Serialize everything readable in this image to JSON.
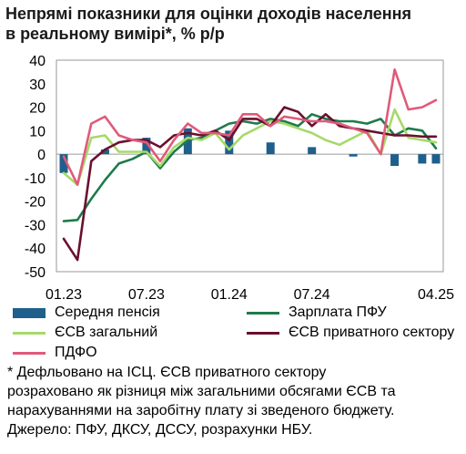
{
  "title_lines": [
    "Непрямі показники для оцінки доходів населення",
    "в реальному вимірі*, % р/р"
  ],
  "colors": {
    "pension": "#1f5f8b",
    "pfu_salary": "#1e7b4b",
    "esv_total": "#a6d96a",
    "esv_private": "#6b0f2e",
    "pdfo": "#e05a7a"
  },
  "legend": {
    "pension": "Середня пенсія",
    "pfu_salary": "Зарплата ПФУ",
    "esv_total": "ЄСВ загальний",
    "esv_private": "ЄСВ приватного сектору",
    "pdfo": "ПДФО"
  },
  "footnote": [
    "* Дефльовано на ІСЦ. ЄСВ приватного сектору",
    "розраховано як різниця між загальними обсягами ЄСВ та",
    "нарахуваннями на заробітну плату зі зведеного бюджету.",
    "Джерело: ПФУ, ДКСУ, ДССУ, розрахунки НБУ."
  ],
  "chart_data": {
    "type": "line",
    "x": [
      "01.23",
      "02.23",
      "03.23",
      "04.23",
      "05.23",
      "06.23",
      "07.23",
      "08.23",
      "09.23",
      "10.23",
      "11.23",
      "12.23",
      "01.24",
      "02.24",
      "03.24",
      "04.24",
      "05.24",
      "06.24",
      "07.24",
      "08.24",
      "09.24",
      "10.24",
      "11.24",
      "12.24",
      "01.25",
      "02.25",
      "03.25",
      "04.25"
    ],
    "x_tick_labels": [
      "01.23",
      "07.23",
      "01.24",
      "07.24",
      "04.25"
    ],
    "ylim": [
      -50,
      40
    ],
    "yticks": [
      -50,
      -40,
      -30,
      -20,
      -10,
      0,
      10,
      20,
      30,
      40
    ],
    "grid": false,
    "legend_position": "bottom",
    "series": [
      {
        "key": "pension",
        "name": "Середня пенсія",
        "kind": "bar",
        "values": [
          -8,
          null,
          null,
          2,
          null,
          null,
          7,
          null,
          null,
          11,
          null,
          null,
          10,
          null,
          null,
          5,
          null,
          null,
          3,
          null,
          null,
          -1,
          null,
          null,
          -5,
          null,
          -4,
          -4
        ]
      },
      {
        "key": "pfu_salary",
        "name": "Зарплата ПФУ",
        "kind": "line",
        "values": [
          -28.5,
          -28,
          -19,
          -11,
          -4,
          -2,
          1,
          -6,
          1,
          6,
          7,
          10,
          13,
          14,
          13,
          15,
          14,
          12,
          17,
          15,
          14,
          14,
          13,
          15,
          8,
          11,
          10,
          2.5
        ]
      },
      {
        "key": "esv_total",
        "name": "ЄСВ загальний",
        "kind": "line",
        "values": [
          -8,
          -13,
          7,
          8,
          1,
          1,
          1,
          -5,
          3,
          7,
          6,
          9,
          2,
          8,
          11,
          14,
          13,
          11,
          9,
          6,
          4,
          7,
          10,
          0,
          19,
          7,
          6,
          5
        ]
      },
      {
        "key": "esv_private",
        "name": "ЄСВ приватного сектору",
        "kind": "line",
        "values": [
          -36,
          -45,
          -3,
          2,
          5,
          6,
          6,
          3,
          8,
          9,
          8,
          10,
          6,
          15,
          15,
          12,
          20,
          18,
          12,
          17,
          12,
          11,
          10,
          9,
          8,
          8,
          7.5,
          7.5
        ]
      },
      {
        "key": "pdfo",
        "name": "ПДФО",
        "kind": "line",
        "values": [
          -1,
          -13,
          13,
          16,
          8,
          6,
          5,
          -3,
          6,
          13,
          9,
          9,
          8,
          17,
          17,
          12,
          16,
          15,
          14,
          14,
          13,
          11,
          9,
          0,
          36,
          19,
          20,
          23
        ]
      }
    ]
  }
}
